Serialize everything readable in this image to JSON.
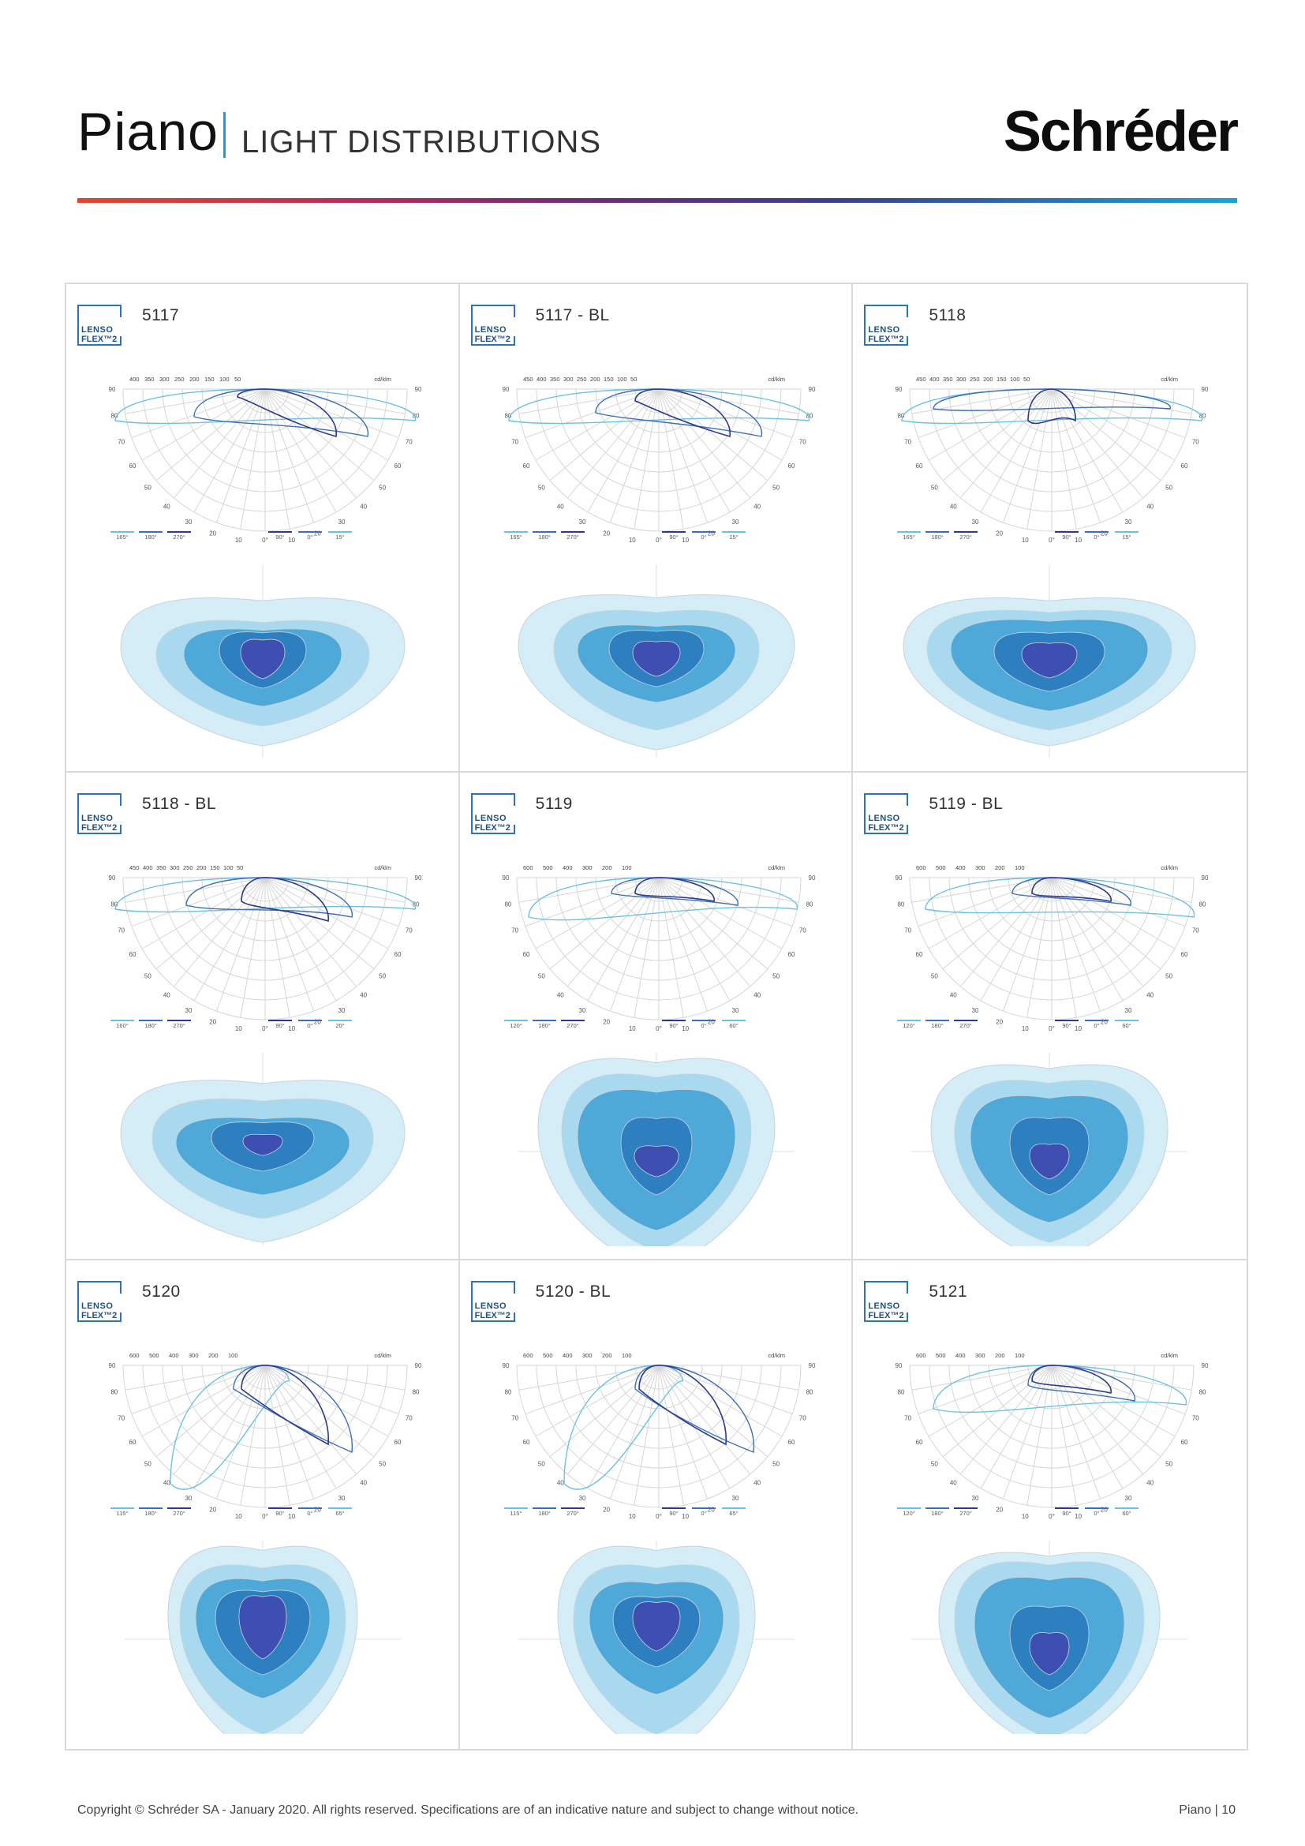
{
  "header": {
    "title": "Piano",
    "subtitle": "LIGHT DISTRIBUTIONS",
    "brand": "Schréder"
  },
  "badge": {
    "line1": "LENSO",
    "line2": "FLEX™2"
  },
  "cells": [
    {
      "title": "5117",
      "scale": [
        "400",
        "350",
        "300",
        "250",
        "200",
        "150",
        "100",
        "50"
      ],
      "legend": [
        "165°",
        "180°",
        "270°",
        "90°",
        "0°",
        "15°"
      ]
    },
    {
      "title": "5117 - BL",
      "scale": [
        "450",
        "400",
        "350",
        "300",
        "250",
        "200",
        "150",
        "100",
        "50"
      ],
      "legend": [
        "165°",
        "180°",
        "270°",
        "90°",
        "0°",
        "15°"
      ]
    },
    {
      "title": "5118",
      "scale": [
        "450",
        "400",
        "350",
        "300",
        "250",
        "200",
        "150",
        "100",
        "50"
      ],
      "legend": [
        "165°",
        "180°",
        "270°",
        "90°",
        "0°",
        "15°"
      ]
    },
    {
      "title": "5118 - BL",
      "scale": [
        "450",
        "400",
        "350",
        "300",
        "250",
        "200",
        "150",
        "100",
        "50"
      ],
      "legend": [
        "160°",
        "180°",
        "270°",
        "90°",
        "0°",
        "20°"
      ]
    },
    {
      "title": "5119",
      "scale": [
        "600",
        "500",
        "400",
        "300",
        "200",
        "100"
      ],
      "legend": [
        "120°",
        "180°",
        "270°",
        "90°",
        "0°",
        "60°"
      ]
    },
    {
      "title": "5119 - BL",
      "scale": [
        "600",
        "500",
        "400",
        "300",
        "200",
        "100"
      ],
      "legend": [
        "120°",
        "180°",
        "270°",
        "90°",
        "0°",
        "60°"
      ]
    },
    {
      "title": "5120",
      "scale": [
        "600",
        "500",
        "400",
        "300",
        "200",
        "100"
      ],
      "legend": [
        "115°",
        "180°",
        "270°",
        "90°",
        "0°",
        "65°"
      ]
    },
    {
      "title": "5120 - BL",
      "scale": [
        "600",
        "500",
        "400",
        "300",
        "200",
        "100"
      ],
      "legend": [
        "115°",
        "180°",
        "270°",
        "90°",
        "0°",
        "65°"
      ]
    },
    {
      "title": "5121",
      "scale": [
        "600",
        "500",
        "400",
        "300",
        "200",
        "100"
      ],
      "legend": [
        "120°",
        "180°",
        "270°",
        "90°",
        "0°",
        "60°"
      ]
    }
  ],
  "polar_unit": "cd/klm",
  "angle_labels": [
    "90",
    "80",
    "70",
    "60",
    "50",
    "40",
    "30",
    "20",
    "10",
    "0°"
  ],
  "colors": {
    "accent": "#1ba3d2",
    "curve_dark": "#2b3a8c",
    "curve_mid": "#3d6fb8",
    "curve_light": "#6cc1e3",
    "iso_1": "#d5edf6",
    "iso_2": "#a8d9ee",
    "iso_3": "#4fa9d8",
    "iso_4": "#2e7fc0",
    "iso_5": "#3d4fb0"
  },
  "footer": {
    "copyright": "Copyright © Schréder SA - January 2020. All rights reserved. Specifications are of an indicative nature and subject to change without notice.",
    "page": "Piano | 10"
  }
}
